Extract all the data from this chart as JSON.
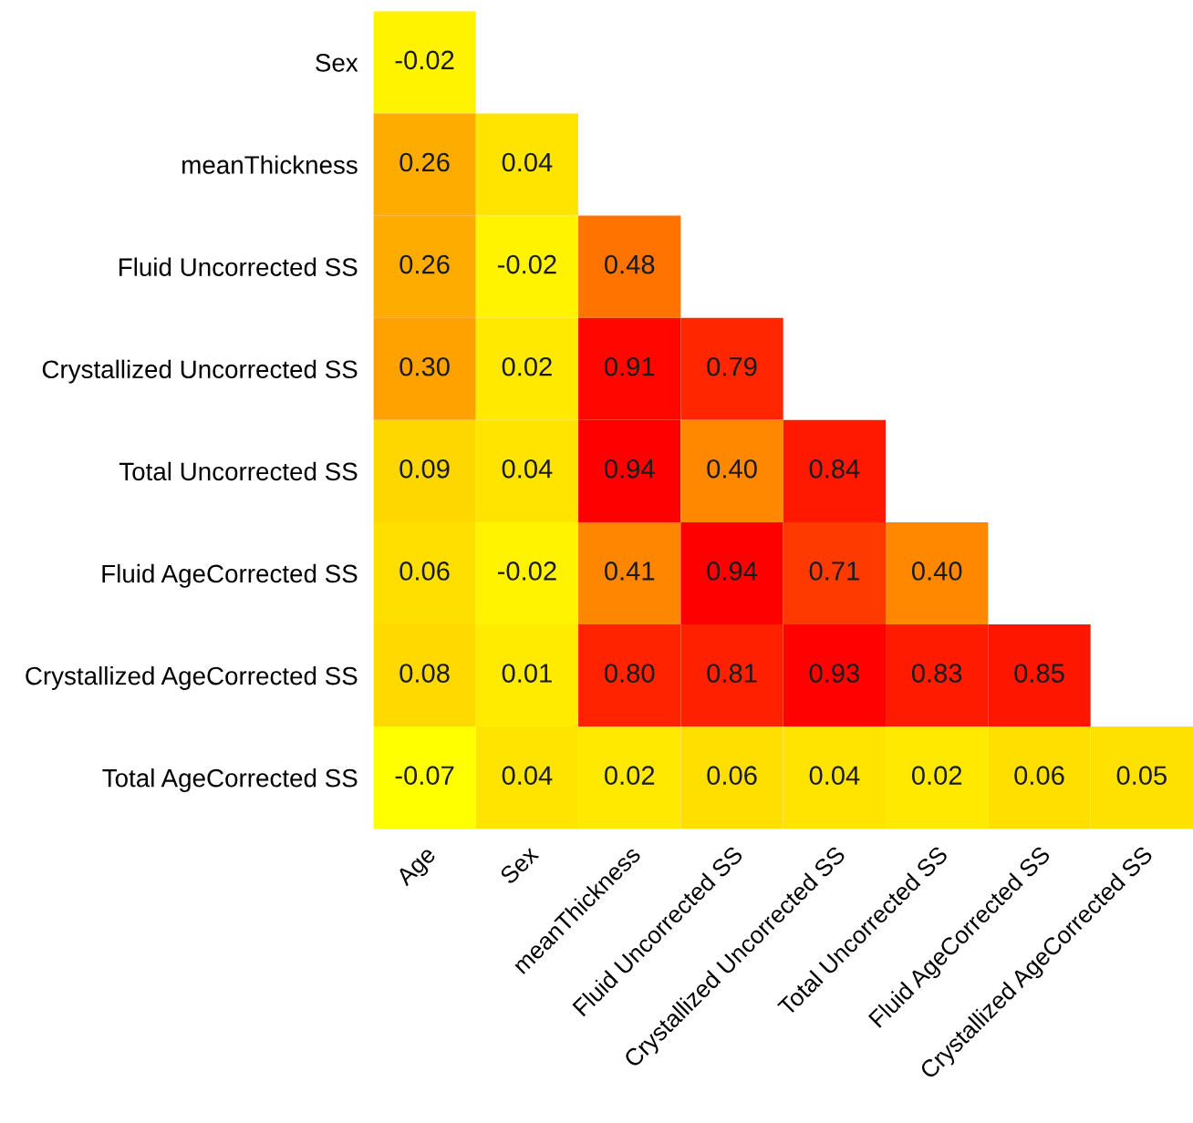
{
  "chart_data": {
    "type": "heatmap",
    "categories": [
      "Age",
      "Sex",
      "meanThickness",
      "Fluid Uncorrected SS",
      "Crystallized Uncorrected SS",
      "Total Uncorrected SS",
      "Fluid AgeCorrected SS",
      "Crystallized AgeCorrected SS"
    ],
    "y_categories": [
      "Sex",
      "meanThickness",
      "Fluid Uncorrected SS",
      "Crystallized Uncorrected SS",
      "Total Uncorrected SS",
      "Fluid AgeCorrected SS",
      "Crystallized AgeCorrected SS",
      "Total AgeCorrected SS"
    ],
    "cells": [
      [
        -0.02,
        null,
        null,
        null,
        null,
        null,
        null,
        null
      ],
      [
        0.26,
        0.04,
        null,
        null,
        null,
        null,
        null,
        null
      ],
      [
        0.26,
        -0.02,
        0.48,
        null,
        null,
        null,
        null,
        null
      ],
      [
        0.3,
        0.02,
        0.91,
        0.79,
        null,
        null,
        null,
        null
      ],
      [
        0.09,
        0.04,
        0.94,
        0.4,
        0.84,
        null,
        null,
        null
      ],
      [
        0.06,
        -0.02,
        0.41,
        0.94,
        0.71,
        0.4,
        null,
        null
      ],
      [
        0.08,
        0.01,
        0.8,
        0.81,
        0.93,
        0.83,
        0.85,
        null
      ],
      [
        -0.07,
        0.04,
        0.02,
        0.06,
        0.04,
        0.02,
        0.06,
        0.05
      ]
    ],
    "cell_labels": [
      [
        "-0.02",
        null,
        null,
        null,
        null,
        null,
        null,
        null
      ],
      [
        "0.26",
        "0.04",
        null,
        null,
        null,
        null,
        null,
        null
      ],
      [
        "0.26",
        "-0.02",
        "0.48",
        null,
        null,
        null,
        null,
        null
      ],
      [
        "0.30",
        "0.02",
        "0.91",
        "0.79",
        null,
        null,
        null,
        null
      ],
      [
        "0.09",
        "0.04",
        "0.94",
        "0.40",
        "0.84",
        null,
        null,
        null
      ],
      [
        "0.06",
        "-0.02",
        "0.41",
        "0.94",
        "0.71",
        "0.40",
        null,
        null
      ],
      [
        "0.08",
        "0.01",
        "0.80",
        "0.81",
        "0.93",
        "0.83",
        "0.85",
        null
      ],
      [
        "-0.07",
        "0.04",
        "0.02",
        "0.06",
        "0.04",
        "0.02",
        "0.06",
        "0.05"
      ]
    ]
  }
}
